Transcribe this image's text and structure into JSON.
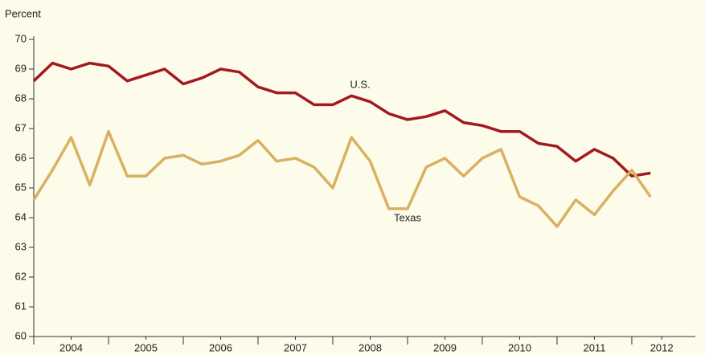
{
  "chart_data": {
    "type": "line",
    "y_label": "Percent",
    "x": [
      2004,
      2004.25,
      2004.5,
      2004.75,
      2005,
      2005.25,
      2005.5,
      2005.75,
      2006,
      2006.25,
      2006.5,
      2006.75,
      2007,
      2007.25,
      2007.5,
      2007.75,
      2008,
      2008.25,
      2008.5,
      2008.75,
      2009,
      2009.25,
      2009.5,
      2009.75,
      2010,
      2010.25,
      2010.5,
      2010.75,
      2011,
      2011.25,
      2011.5,
      2011.75,
      2012,
      2012.25
    ],
    "xlim": [
      2004,
      2012.85
    ],
    "xticks": [
      {
        "value": 2004.5,
        "label": "2004"
      },
      {
        "value": 2005.5,
        "label": "2005"
      },
      {
        "value": 2006.5,
        "label": "2006"
      },
      {
        "value": 2007.5,
        "label": "2007"
      },
      {
        "value": 2008.5,
        "label": "2008"
      },
      {
        "value": 2009.5,
        "label": "2009"
      },
      {
        "value": 2010.5,
        "label": "2010"
      },
      {
        "value": 2011.5,
        "label": "2011"
      },
      {
        "value": 2012.4,
        "label": "2012"
      }
    ],
    "ylim": [
      60,
      70
    ],
    "yticks": [
      60,
      61,
      62,
      63,
      64,
      65,
      66,
      67,
      68,
      69,
      70
    ],
    "series": [
      {
        "name": "U.S.",
        "color": "#a3191f",
        "values": [
          68.6,
          69.2,
          69.0,
          69.2,
          69.1,
          68.6,
          68.8,
          69.0,
          68.5,
          68.7,
          69.0,
          68.9,
          68.4,
          68.2,
          68.2,
          67.8,
          67.8,
          68.1,
          67.9,
          67.5,
          67.3,
          67.4,
          67.6,
          67.2,
          67.1,
          66.9,
          66.9,
          66.5,
          66.4,
          65.9,
          66.3,
          66.0,
          65.4,
          65.5
        ]
      },
      {
        "name": "Texas",
        "color": "#d8b163",
        "values": [
          64.6,
          65.6,
          66.7,
          65.1,
          66.9,
          65.4,
          65.4,
          66.0,
          66.1,
          65.8,
          65.9,
          66.1,
          66.6,
          65.9,
          66.0,
          65.7,
          65.0,
          66.7,
          65.9,
          64.3,
          64.3,
          65.7,
          66.0,
          65.4,
          66.0,
          66.3,
          64.7,
          64.4,
          63.7,
          64.6,
          64.1,
          64.9,
          65.6,
          64.7
        ]
      }
    ]
  }
}
